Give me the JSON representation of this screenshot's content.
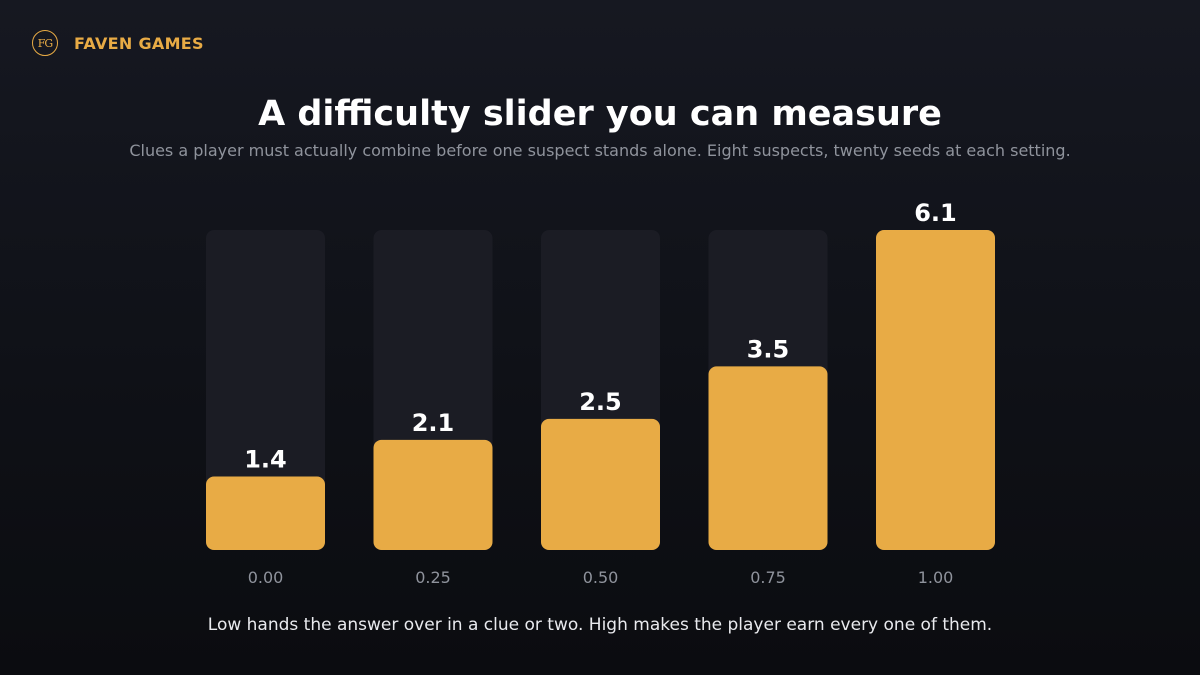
{
  "brand": {
    "logo_text": "FG",
    "name": "FAVEN GAMES",
    "accent_color": "#e8ab45"
  },
  "header": {
    "title": "A difficulty slider you can measure",
    "subtitle": "Clues a player must actually combine before one suspect stands alone. Eight suspects, twenty seeds at each setting."
  },
  "caption": "Low hands the answer over in a clue or two. High makes the player earn every one of them.",
  "chart_data": {
    "type": "bar",
    "title": "A difficulty slider you can measure",
    "subtitle": "Clues a player must actually combine before one suspect stands alone. Eight suspects, twenty seeds at each setting.",
    "categories": [
      "0.00",
      "0.25",
      "0.50",
      "0.75",
      "1.00"
    ],
    "values": [
      1.4,
      2.1,
      2.5,
      3.5,
      6.1
    ],
    "value_labels": [
      "1.4",
      "2.1",
      "2.5",
      "3.5",
      "6.1"
    ],
    "xlabel": "",
    "ylabel": "",
    "ylim": [
      0,
      6.1
    ],
    "grid": false,
    "legend": "none",
    "bar_color": "#e8ab45",
    "track_color": "#1b1c24"
  }
}
